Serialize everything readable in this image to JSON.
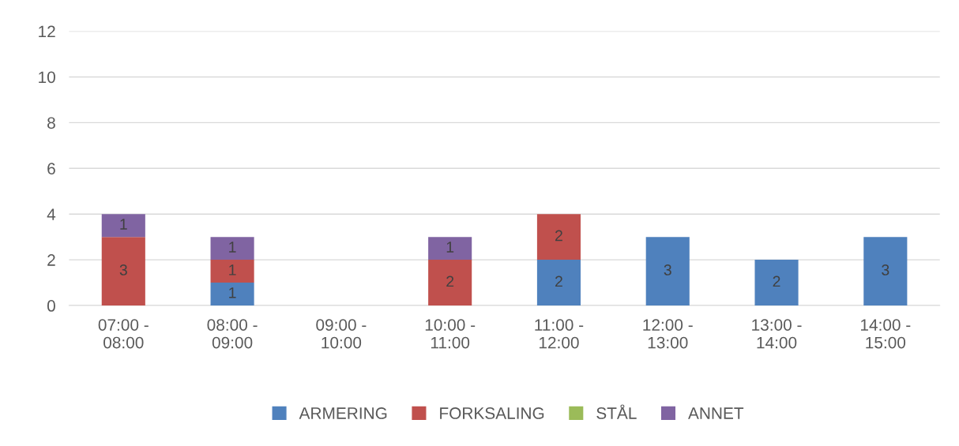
{
  "chart_data": {
    "type": "bar",
    "stacked": true,
    "categories": [
      "07:00 -\n08:00",
      "08:00 -\n09:00",
      "09:00 -\n10:00",
      "10:00 -\n11:00",
      "11:00 -\n12:00",
      "12:00 -\n13:00",
      "13:00 -\n14:00",
      "14:00 -\n15:00"
    ],
    "series": [
      {
        "name": "ARMERING",
        "color": "#4f81bd",
        "values": [
          null,
          1,
          null,
          null,
          2,
          3,
          2,
          3
        ]
      },
      {
        "name": "FORKSALING",
        "color": "#c0504d",
        "values": [
          3,
          1,
          null,
          2,
          2,
          null,
          null,
          null
        ]
      },
      {
        "name": "STÅL",
        "color": "#9bbb59",
        "values": [
          null,
          null,
          null,
          null,
          null,
          null,
          null,
          null
        ]
      },
      {
        "name": "ANNET",
        "color": "#8064a2",
        "values": [
          1,
          1,
          null,
          1,
          null,
          null,
          null,
          null
        ]
      }
    ],
    "ylim": [
      0,
      12
    ],
    "yticks": [
      0,
      2,
      4,
      6,
      8,
      10,
      12
    ],
    "grid": "y",
    "legend": "bottom",
    "data_labels": true
  }
}
